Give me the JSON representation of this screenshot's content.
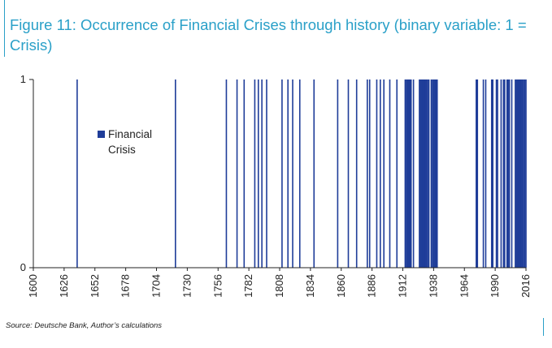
{
  "title": "Figure 11: Occurrence of Financial Crises through history (binary variable: 1 = Crisis)",
  "source": "Source: Deutsche Bank, Author’s calculations",
  "colors": {
    "title": "#2aa0c8",
    "bars": "#1f3d99",
    "axis": "#222222"
  },
  "chart_data": {
    "type": "bar",
    "title": "Figure 11: Occurrence of Financial Crises through history (binary variable: 1 = Crisis)",
    "xlabel": "",
    "ylabel": "",
    "xlim": [
      1600,
      2016
    ],
    "ylim": [
      0,
      1
    ],
    "yticks": [
      0,
      1
    ],
    "xticks": [
      1600,
      1626,
      1652,
      1678,
      1704,
      1730,
      1756,
      1782,
      1808,
      1834,
      1860,
      1886,
      1912,
      1938,
      1964,
      1990,
      2016
    ],
    "legend_position": "upper-left",
    "grid": false,
    "series": [
      {
        "name": "Financial Crisis",
        "value": 1,
        "years": [
          1637,
          1720,
          1763,
          1772,
          1778,
          1787,
          1790,
          1793,
          1797,
          1810,
          1815,
          1819,
          1825,
          1837,
          1857,
          1866,
          1873,
          1882,
          1884,
          1890,
          1893,
          1896,
          1901,
          1907,
          1914,
          1915,
          1916,
          1917,
          1918,
          1919,
          1921,
          1926,
          1927,
          1928,
          1929,
          1930,
          1931,
          1932,
          1933,
          1934,
          1936,
          1937,
          1938,
          1939,
          1940,
          1941,
          1974,
          1975,
          1980,
          1982,
          1987,
          1988,
          1991,
          1992,
          1995,
          1997,
          1998,
          2000,
          2001,
          2002,
          2004,
          2007,
          2008,
          2009,
          2010,
          2011,
          2012,
          2013,
          2014,
          2015,
          2016
        ]
      }
    ]
  }
}
